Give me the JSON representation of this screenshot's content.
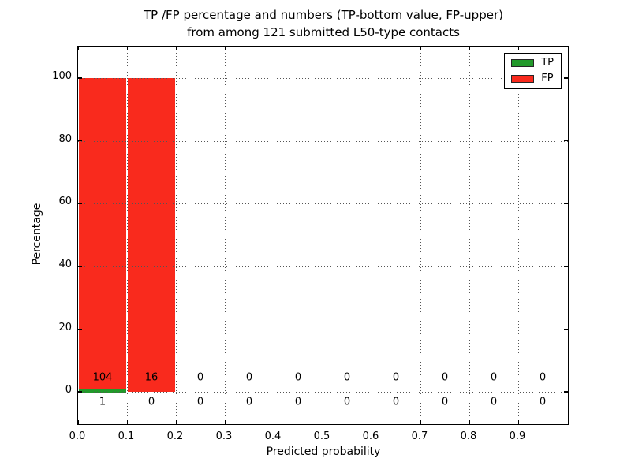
{
  "figure": {
    "title_line1": "TP /FP percentage and numbers (TP-bottom value, FP-upper)",
    "title_line2": "from among 121 submitted L50-type contacts",
    "xlabel": "Predicted probability",
    "ylabel": "Percentage"
  },
  "legend": {
    "items": [
      {
        "label": "TP",
        "color": "#22992b"
      },
      {
        "label": "FP",
        "color": "#f92a1d"
      }
    ]
  },
  "chart_data": {
    "type": "bar",
    "stacked": true,
    "title": "TP /FP percentage and numbers (TP-bottom value, FP-upper) from among 121 submitted L50-type contacts",
    "xlabel": "Predicted probability",
    "ylabel": "Percentage",
    "total_contacts": 121,
    "xlim": [
      0.0,
      1.0
    ],
    "ylim": [
      -10,
      110
    ],
    "xticks": [
      "0.0",
      "0.1",
      "0.2",
      "0.3",
      "0.4",
      "0.5",
      "0.6",
      "0.7",
      "0.8",
      "0.9"
    ],
    "yticks": [
      0,
      20,
      40,
      60,
      80,
      100
    ],
    "grid": true,
    "legend_position": "upper right",
    "bin_width": 0.1,
    "series_colors": {
      "TP": "#22992b",
      "FP": "#f92a1d"
    },
    "bins": [
      {
        "x_start": 0.0,
        "tp_count": 1,
        "fp_count": 104,
        "tp_pct": 0.95,
        "fp_pct": 99.05
      },
      {
        "x_start": 0.1,
        "tp_count": 0,
        "fp_count": 16,
        "tp_pct": 0.0,
        "fp_pct": 100.0
      },
      {
        "x_start": 0.2,
        "tp_count": 0,
        "fp_count": 0,
        "tp_pct": 0.0,
        "fp_pct": 0.0
      },
      {
        "x_start": 0.3,
        "tp_count": 0,
        "fp_count": 0,
        "tp_pct": 0.0,
        "fp_pct": 0.0
      },
      {
        "x_start": 0.4,
        "tp_count": 0,
        "fp_count": 0,
        "tp_pct": 0.0,
        "fp_pct": 0.0
      },
      {
        "x_start": 0.5,
        "tp_count": 0,
        "fp_count": 0,
        "tp_pct": 0.0,
        "fp_pct": 0.0
      },
      {
        "x_start": 0.6,
        "tp_count": 0,
        "fp_count": 0,
        "tp_pct": 0.0,
        "fp_pct": 0.0
      },
      {
        "x_start": 0.7,
        "tp_count": 0,
        "fp_count": 0,
        "tp_pct": 0.0,
        "fp_pct": 0.0
      },
      {
        "x_start": 0.8,
        "tp_count": 0,
        "fp_count": 0,
        "tp_pct": 0.0,
        "fp_pct": 0.0
      },
      {
        "x_start": 0.9,
        "tp_count": 0,
        "fp_count": 0,
        "tp_pct": 0.0,
        "fp_pct": 0.0
      }
    ]
  }
}
